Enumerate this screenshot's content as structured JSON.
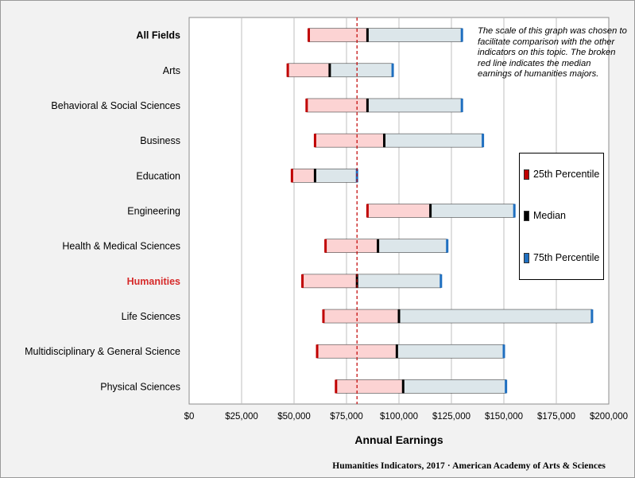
{
  "chart_data": {
    "type": "bar",
    "subtype": "floating range (25th–75th percentile with median)",
    "categories": [
      "All Fields",
      "Arts",
      "Behavioral & Social Sciences",
      "Business",
      "Education",
      "Engineering",
      "Health & Medical Sciences",
      "Humanities",
      "Life Sciences",
      "Multidisciplinary & General Science",
      "Physical Sciences"
    ],
    "category_styles": [
      "bold",
      "normal",
      "normal",
      "normal",
      "normal",
      "normal",
      "normal",
      "highlight",
      "normal",
      "normal",
      "normal"
    ],
    "series": [
      {
        "name": "25th Percentile",
        "values": [
          57000,
          47000,
          56000,
          60000,
          49000,
          85000,
          65000,
          54000,
          64000,
          61000,
          70000
        ]
      },
      {
        "name": "Median",
        "values": [
          85000,
          67000,
          85000,
          93000,
          60000,
          115000,
          90000,
          80000,
          100000,
          99000,
          102000
        ]
      },
      {
        "name": "75th Percentile",
        "values": [
          130000,
          97000,
          130000,
          140000,
          80000,
          155000,
          123000,
          120000,
          192000,
          150000,
          151000
        ]
      }
    ],
    "reference_line": {
      "value": 80000,
      "style": "dashed",
      "color": "#c00000"
    },
    "xlabel": "Annual Earnings",
    "xlim": [
      0,
      200000
    ],
    "xticks": [
      0,
      25000,
      50000,
      75000,
      100000,
      125000,
      150000,
      175000,
      200000
    ],
    "xtick_labels": [
      "$0",
      "$25,000",
      "$50,000",
      "$75,000",
      "$100,000",
      "$125,000",
      "$150,000",
      "$175,000",
      "$200,000"
    ],
    "grid": "vertical",
    "legend_position": "right",
    "colors": {
      "p25_marker": "#c00000",
      "median_marker": "#000000",
      "p75_marker": "#1f6fc0",
      "lower_fill": "#fcd3d3",
      "upper_fill": "#dce6ea",
      "highlight_label": "#d62a2a"
    }
  },
  "note_text": "The scale of this graph was chosen to facilitate comparison with the other indicators on this topic. The broken red line indicates the median earnings of humanities majors.",
  "legend": {
    "items": [
      {
        "label": "25th Percentile",
        "color": "#c00000"
      },
      {
        "label": "Median",
        "color": "#000000"
      },
      {
        "label": "75th Percentile",
        "color": "#1f6fc0"
      }
    ]
  },
  "footer": "Humanities Indicators, 2017 · American Academy of Arts & Sciences"
}
